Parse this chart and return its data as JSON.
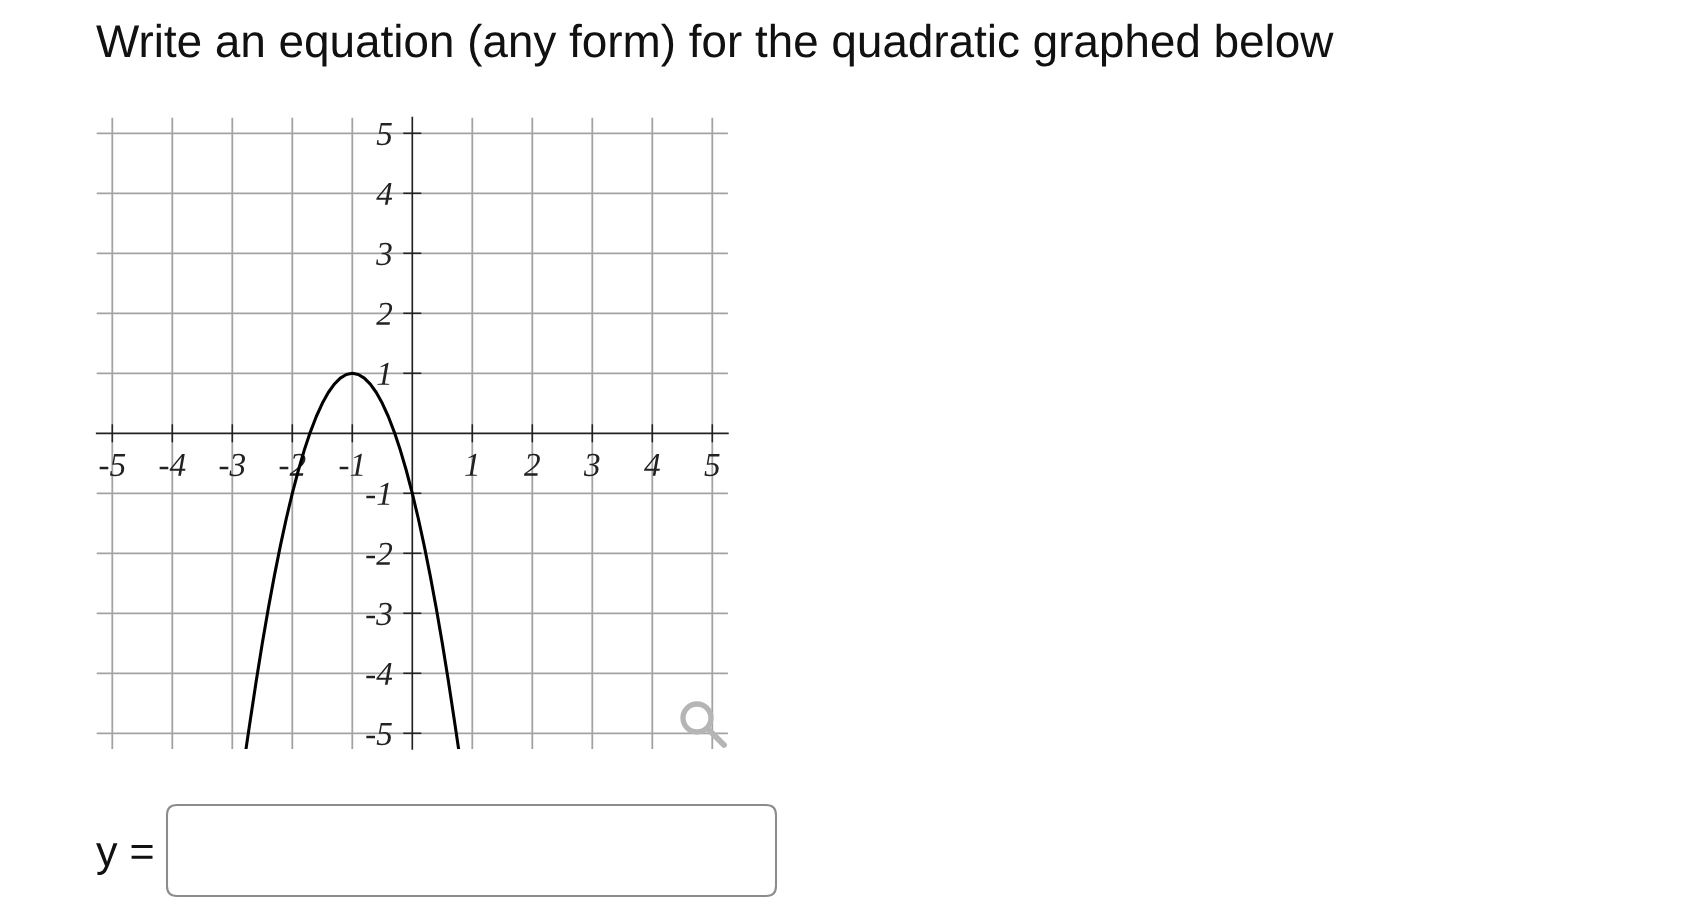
{
  "chart_data": {
    "type": "line",
    "title": "Write an equation (any form) for the quadratic graphed below",
    "annotations": [
      "y ="
    ],
    "series": [
      {
        "color": "#000000",
        "x": [
          -2.77,
          -2.7,
          -2.6,
          -2.5,
          -2.4,
          -2.3,
          -2.2,
          -2.1,
          -2.0,
          -1.9,
          -1.8,
          -1.7,
          -1.6,
          -1.5,
          -1.4,
          -1.3,
          -1.2,
          -1.1,
          -1.0,
          -0.9,
          -0.8,
          -0.7,
          -0.6,
          -0.5,
          -0.4,
          -0.3,
          -0.2,
          -0.1,
          0.0,
          0.1,
          0.2,
          0.3,
          0.4,
          0.5,
          0.6,
          0.7,
          0.77
        ],
        "values": [
          -5.25,
          -4.78,
          -4.12,
          -3.5,
          -2.92,
          -2.38,
          -1.88,
          -1.42,
          -1.0,
          -0.62,
          -0.28,
          0.02,
          0.28,
          0.5,
          0.68,
          0.82,
          0.92,
          0.98,
          1.0,
          0.98,
          0.92,
          0.82,
          0.68,
          0.5,
          0.28,
          0.02,
          -0.28,
          -0.62,
          -1.0,
          -1.42,
          -1.88,
          -2.38,
          -2.92,
          -3.5,
          -4.12,
          -4.78,
          -5.25
        ]
      }
    ],
    "xlim": [
      -5.26,
      5.26
    ],
    "ylim": [
      -5.26,
      5.26
    ],
    "xticks": [
      -5,
      -4,
      -3,
      -2,
      -1,
      1,
      2,
      3,
      4,
      5
    ],
    "yticks": [
      -5,
      -4,
      -3,
      -2,
      -1,
      1,
      2,
      3,
      4,
      5
    ],
    "grid": true,
    "line_style": "solid"
  }
}
